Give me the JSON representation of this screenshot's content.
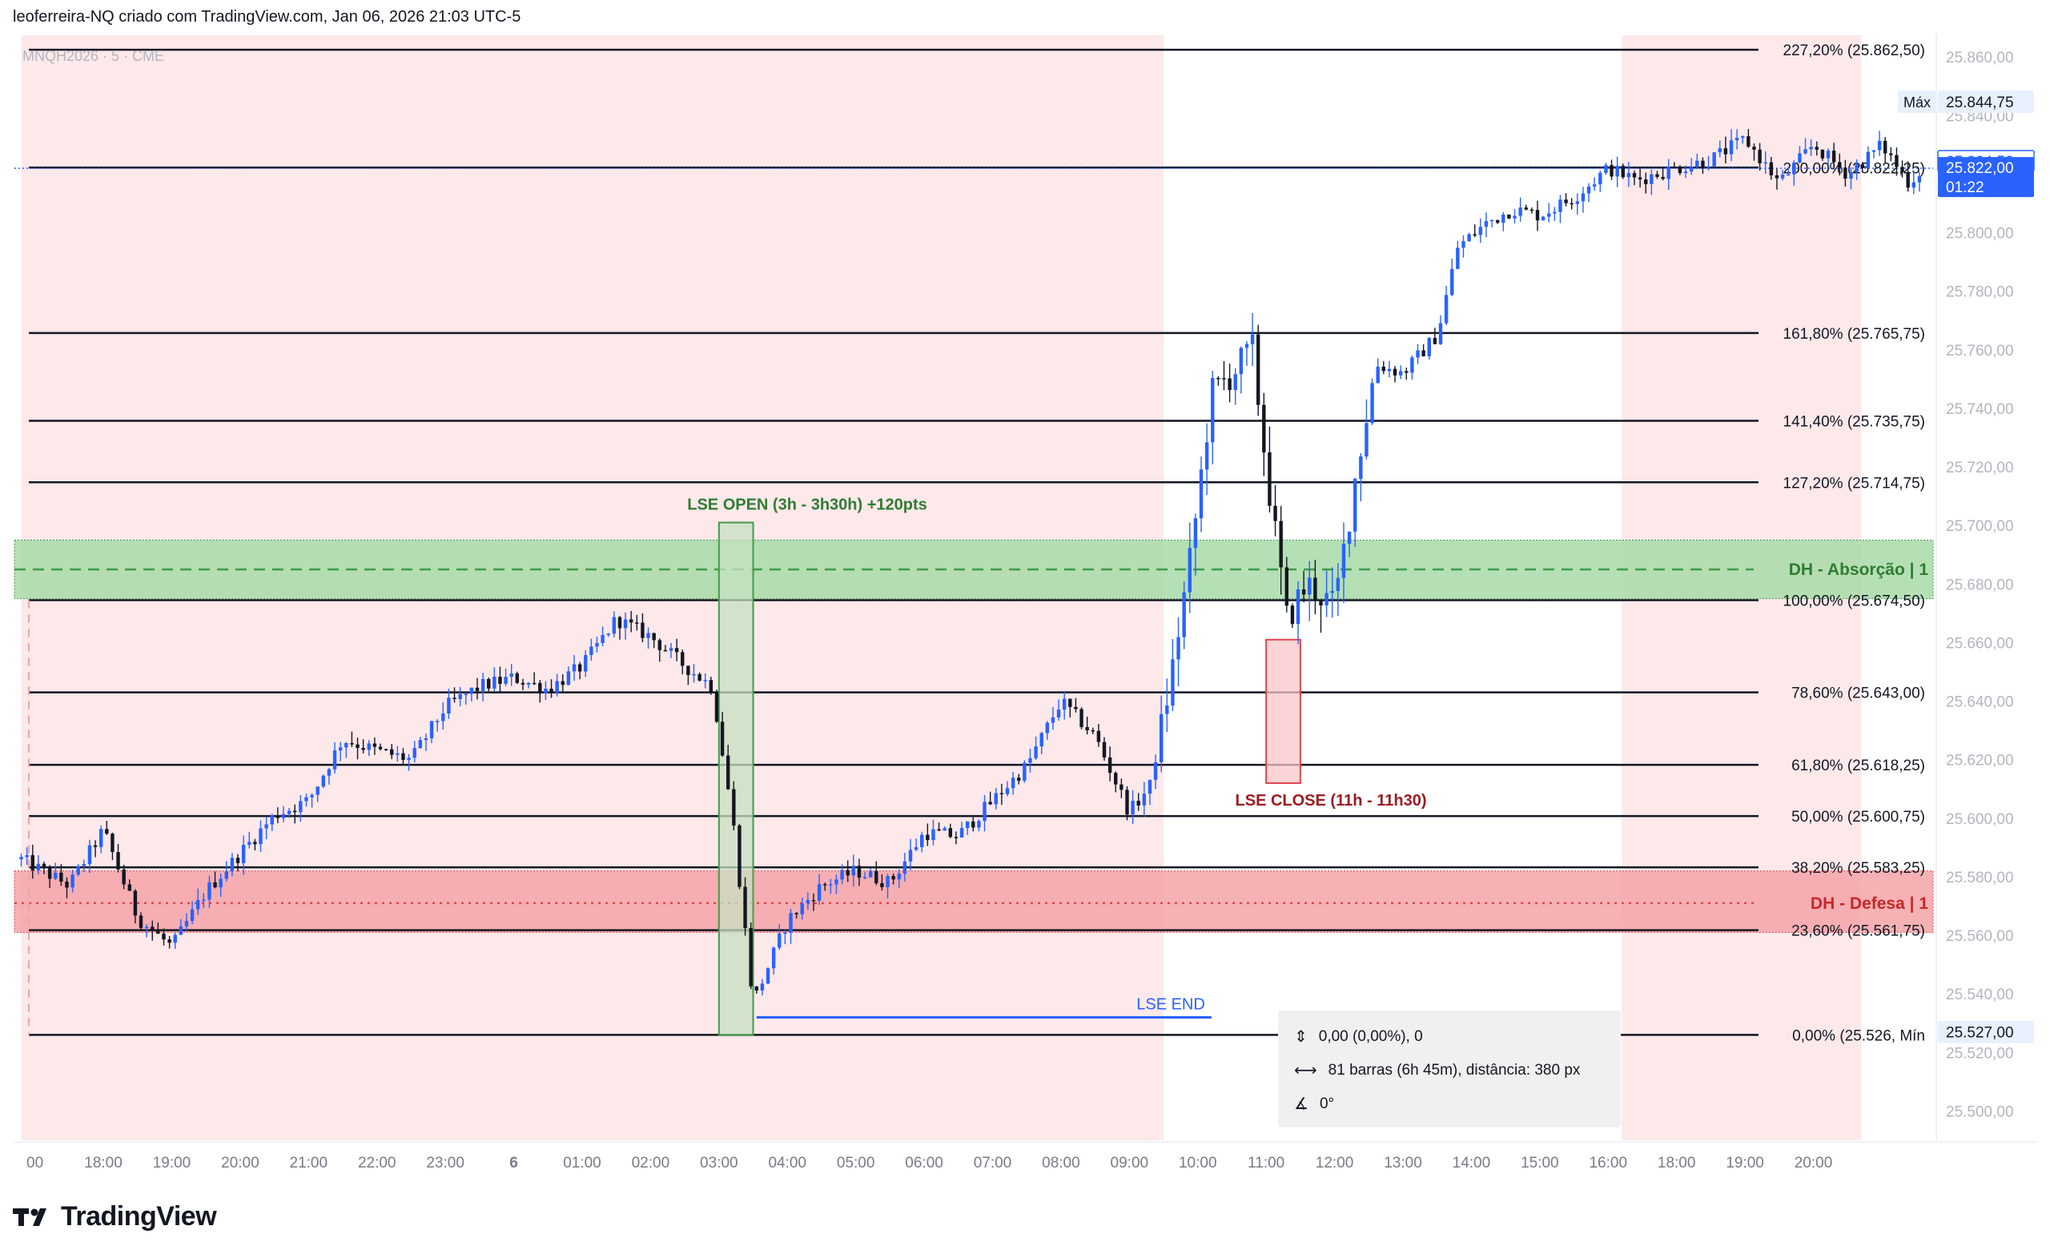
{
  "header": {
    "title": "leoferreira-NQ criado com TradingView.com, Jan 06, 2026 21:03 UTC-5"
  },
  "brand": {
    "name": "TradingView"
  },
  "chart_data": {
    "type": "candlestick",
    "symbol_label": "MNQH2026 · 5 · CME",
    "ylim": [
      25490,
      25868
    ],
    "price_ticks": [
      "25.860,00",
      "25.840,00",
      "25.820,00",
      "25.800,00",
      "25.780,00",
      "25.760,00",
      "25.740,00",
      "25.720,00",
      "25.700,00",
      "25.680,00",
      "25.660,00",
      "25.640,00",
      "25.620,00",
      "25.600,00",
      "25.580,00",
      "25.560,00",
      "25.540,00",
      "25.520,00",
      "25.500,00"
    ],
    "price_tick_values": [
      25860,
      25840,
      25820,
      25800,
      25780,
      25760,
      25740,
      25720,
      25700,
      25680,
      25660,
      25640,
      25620,
      25600,
      25580,
      25560,
      25540,
      25520,
      25500
    ],
    "time_ticks": [
      "00",
      "18:00",
      "19:00",
      "20:00",
      "21:00",
      "22:00",
      "23:00",
      "6",
      "01:00",
      "02:00",
      "03:00",
      "04:00",
      "05:00",
      "06:00",
      "07:00",
      "08:00",
      "09:00",
      "10:00",
      "11:00",
      "12:00",
      "13:00",
      "14:00",
      "15:00",
      "16:00",
      "18:00",
      "19:00",
      "20:00"
    ],
    "time_tick_hours": [
      -7,
      -6,
      -5,
      -4,
      -3,
      -2,
      -1,
      0,
      1,
      2,
      3,
      4,
      5,
      6,
      7,
      8,
      9,
      10,
      11,
      12,
      13,
      14,
      15,
      16,
      18,
      19,
      20
    ],
    "sessions": [
      {
        "start": -7.2,
        "end": 9.5,
        "color": "#fde8ea"
      },
      {
        "start": 16.2,
        "end": 19.7,
        "color": "#fde8ea"
      }
    ],
    "fib_levels": [
      {
        "label": "227,20% (25.862,50)",
        "price": 25862.5
      },
      {
        "label": "200,00% (25.822,25)",
        "price": 25822.25
      },
      {
        "label": "161,80% (25.765,75)",
        "price": 25765.75
      },
      {
        "label": "141,40% (25.735,75)",
        "price": 25735.75
      },
      {
        "label": "127,20% (25.714,75)",
        "price": 25714.75
      },
      {
        "label": "100,00% (25.674,50)",
        "price": 25674.5
      },
      {
        "label": "78,60% (25.643,00)",
        "price": 25643.0
      },
      {
        "label": "61,80% (25.618,25)",
        "price": 25618.25
      },
      {
        "label": "50,00% (25.600,75)",
        "price": 25600.75
      },
      {
        "label": "38,20% (25.583,25)",
        "price": 25583.25
      },
      {
        "label": "23,60% (25.561,75)",
        "price": 25561.75
      },
      {
        "label": "0,00% (25.526, Mín",
        "price": 25526.0
      }
    ],
    "zones": [
      {
        "label": "DH - Absorção | 1",
        "top": 25695,
        "bottom": 25675,
        "mid": 25685,
        "fill": "#a8dba8",
        "line": "#3f9b4b",
        "text_color": "#2e7d32"
      },
      {
        "label": "DH - Defesa | 1",
        "top": 25582,
        "bottom": 25561,
        "mid": 25571,
        "fill": "#f5a3a8",
        "line": "#e0454e",
        "text_color": "#c62828"
      }
    ],
    "annotations": [
      {
        "label": "LSE OPEN (3h - 3h30h) +120pts",
        "t0": 3.0,
        "t1": 3.5,
        "p_top": 25701,
        "p_bot": 25526,
        "fill": "#c6e0c0",
        "stroke": "#3f9b4b",
        "text_color": "#2e7d32"
      },
      {
        "label": "LSE CLOSE (11h - 11h30)",
        "t0": 11.0,
        "t1": 11.5,
        "p_top": 25661,
        "p_bot": 25612,
        "fill": "#f8c5c8",
        "stroke": "#e0454e",
        "text_color": "#9b1c22"
      }
    ],
    "lse_end": {
      "label": "LSE END",
      "price": 25532,
      "t0": 3.55,
      "t1": 10.2,
      "color": "#2962ff"
    },
    "current_price_line": 25822,
    "badges": [
      {
        "label": "Máx",
        "value": "25.844,75",
        "price": 25844.75,
        "style": "plain"
      },
      {
        "label": "",
        "value": "25.824,50",
        "price": 25824.5,
        "style": "outline"
      },
      {
        "label": "",
        "value": "25.822,00",
        "sub": "01:22",
        "price": 25822.0,
        "style": "filled"
      },
      {
        "label": "",
        "value": "25.527,00",
        "price": 25527.0,
        "style": "plain"
      }
    ],
    "anchors": [
      [
        -7.2,
        25586
      ],
      [
        -6.5,
        25577
      ],
      [
        -6.0,
        25596
      ],
      [
        -5.5,
        25566
      ],
      [
        -5.0,
        25556
      ],
      [
        -4.5,
        25575
      ],
      [
        -4.0,
        25588
      ],
      [
        -3.5,
        25601
      ],
      [
        -3.0,
        25606
      ],
      [
        -2.5,
        25627
      ],
      [
        -2.0,
        25623
      ],
      [
        -1.5,
        25620
      ],
      [
        -1.0,
        25638
      ],
      [
        -0.5,
        25645
      ],
      [
        0.0,
        25648
      ],
      [
        0.5,
        25644
      ],
      [
        1.0,
        25652
      ],
      [
        1.5,
        25668
      ],
      [
        2.0,
        25662
      ],
      [
        2.5,
        25652
      ],
      [
        2.9,
        25645
      ],
      [
        3.2,
        25600
      ],
      [
        3.5,
        25537
      ],
      [
        4.0,
        25565
      ],
      [
        4.5,
        25577
      ],
      [
        5.0,
        25582
      ],
      [
        5.5,
        25578
      ],
      [
        6.0,
        25595
      ],
      [
        6.5,
        25594
      ],
      [
        7.0,
        25606
      ],
      [
        7.5,
        25618
      ],
      [
        8.0,
        25640
      ],
      [
        8.5,
        25628
      ],
      [
        9.0,
        25602
      ],
      [
        9.3,
        25611
      ],
      [
        9.6,
        25647
      ],
      [
        9.9,
        25690
      ],
      [
        10.2,
        25745
      ],
      [
        10.5,
        25752
      ],
      [
        10.8,
        25760
      ],
      [
        11.0,
        25720
      ],
      [
        11.3,
        25668
      ],
      [
        11.6,
        25680
      ],
      [
        12.0,
        25672
      ],
      [
        12.3,
        25716
      ],
      [
        12.6,
        25755
      ],
      [
        13.0,
        25752
      ],
      [
        13.5,
        25765
      ],
      [
        13.8,
        25795
      ],
      [
        14.2,
        25803
      ],
      [
        14.6,
        25808
      ],
      [
        15.0,
        25806
      ],
      [
        15.5,
        25812
      ],
      [
        16.0,
        25822
      ],
      [
        16.4,
        25818
      ],
      [
        17.0,
        25822
      ],
      [
        17.5,
        25825
      ],
      [
        18.0,
        25832
      ],
      [
        18.5,
        25817
      ],
      [
        19.0,
        25830
      ],
      [
        19.5,
        25820
      ],
      [
        20.0,
        25830
      ],
      [
        20.4,
        25817
      ],
      [
        20.6,
        25822
      ]
    ],
    "measure": {
      "price_line": "0,00 (0,00%), 0",
      "bars_line": "81 barras (6h 45m), distância: 380 px",
      "angle_line": "0°"
    },
    "colors": {
      "up": "#2962ff",
      "down": "#131722",
      "grid_text": "#b2b5be",
      "fib_line": "#131722"
    }
  }
}
